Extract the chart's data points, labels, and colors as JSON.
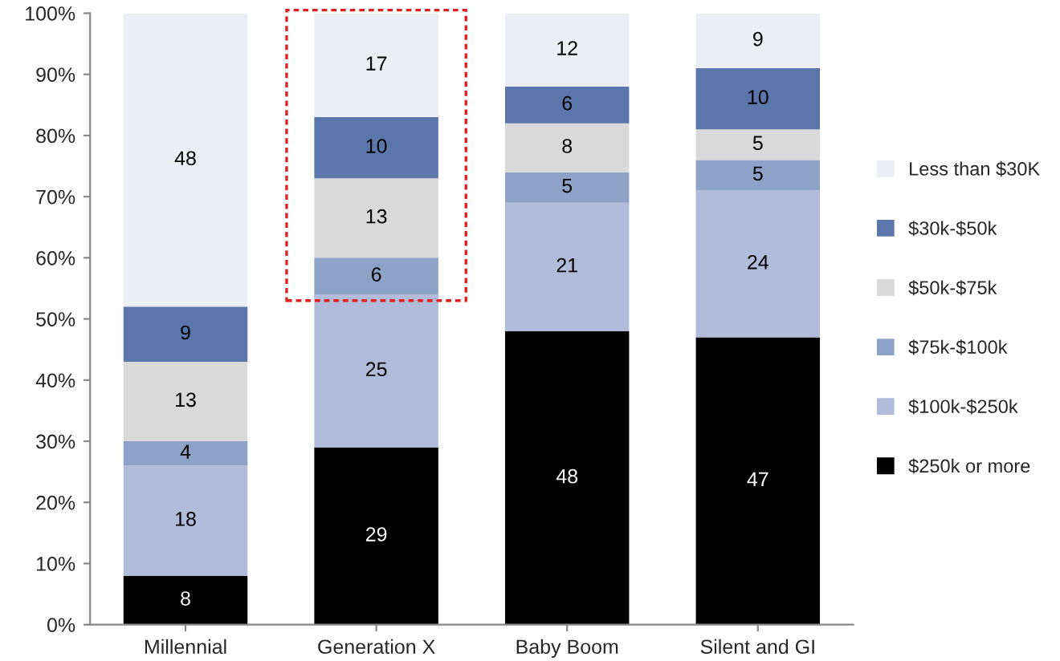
{
  "chart_data": {
    "type": "bar",
    "stacked": true,
    "categories": [
      "Millennial",
      "Generation X",
      "Baby Boom",
      "Silent and GI"
    ],
    "series": [
      {
        "name": "$250k or more",
        "color": "#000000",
        "values": [
          8,
          29,
          48,
          47
        ]
      },
      {
        "name": "$100k-$250k",
        "color": "#b0bcd9",
        "values": [
          18,
          25,
          21,
          24
        ]
      },
      {
        "name": "$75k-$100k",
        "color": "#8ea2c8",
        "values": [
          4,
          6,
          5,
          5
        ]
      },
      {
        "name": "$50k-$75k",
        "color": "#d9d9d9",
        "values": [
          13,
          13,
          8,
          5
        ]
      },
      {
        "name": "$30k-$50k",
        "color": "#5b76aa",
        "values": [
          9,
          10,
          6,
          10
        ]
      },
      {
        "name": "Less than $30K",
        "color": "#eceef5",
        "values": [
          48,
          17,
          12,
          9
        ]
      }
    ],
    "ylim": [
      0,
      100
    ],
    "yticks": [
      {
        "value": 0,
        "label": "0%"
      },
      {
        "value": 10,
        "label": "10%"
      },
      {
        "value": 20,
        "label": "20%"
      },
      {
        "value": 30,
        "label": "30%"
      },
      {
        "value": 40,
        "label": "40%"
      },
      {
        "value": 50,
        "label": "50%"
      },
      {
        "value": 60,
        "label": "60%"
      },
      {
        "value": 70,
        "label": "70%"
      },
      {
        "value": 80,
        "label": "80%"
      },
      {
        "value": 90,
        "label": "90%"
      },
      {
        "value": 100,
        "label": "100%"
      }
    ],
    "data_labels": true,
    "grid": false,
    "legend": "right"
  }
}
